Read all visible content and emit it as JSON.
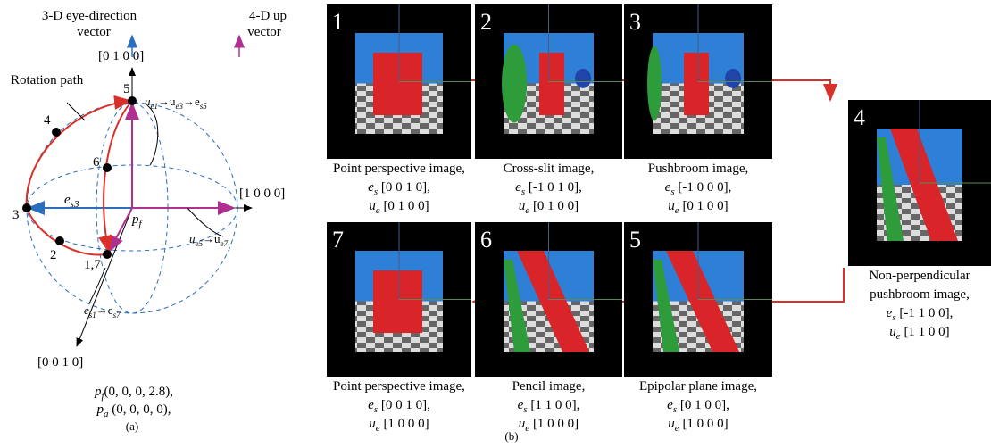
{
  "figure_a": {
    "legend": {
      "eye_direction": [
        "3-D eye-direction",
        "vector"
      ],
      "up": [
        "4-D up",
        "vector"
      ]
    },
    "axes": {
      "y": "[0 1 0 0]",
      "x": "[1 0 0 0]",
      "z": "[0 0 1 0]"
    },
    "rotation_path": "Rotation path",
    "points": [
      "5",
      "4",
      "6",
      "3",
      "2",
      "1,7"
    ],
    "labels": {
      "es3": [
        "e",
        "s3"
      ],
      "pf": [
        "p",
        "f"
      ],
      "top": [
        "u",
        "e1",
        "→u",
        "e3",
        "→e",
        "s5"
      ],
      "right": [
        "u",
        "e5",
        "→u",
        "e7"
      ],
      "bottom": [
        "e",
        "s1",
        "→e",
        "s7"
      ]
    },
    "params": [
      [
        "p",
        "f",
        "(0, 0, 0, 2.8),"
      ],
      [
        "p",
        "a",
        " (0, 0, 0, 0),"
      ]
    ],
    "caption": "(a)"
  },
  "figure_b": {
    "panels": [
      {
        "number": "1",
        "title": [
          "Point perspective image,"
        ],
        "es": [
          "e",
          "s",
          " [0 0 1 0],"
        ],
        "ue": [
          "u",
          "e",
          " [0 1 0 0]"
        ]
      },
      {
        "number": "2",
        "title": [
          "Cross-slit image,"
        ],
        "es": [
          "e",
          "s",
          " [-1 0 1 0],"
        ],
        "ue": [
          "u",
          "e",
          " [0 1 0 0]"
        ]
      },
      {
        "number": "3",
        "title": [
          "Pushbroom image,"
        ],
        "es": [
          "e",
          "s",
          " [-1 0 0 0],"
        ],
        "ue": [
          "u",
          "e",
          " [0 1 0 0]"
        ]
      },
      {
        "number": "4",
        "title": [
          "Non-perpendicular",
          "pushbroom image,"
        ],
        "es": [
          "e",
          "s",
          " [-1 1 0 0],"
        ],
        "ue": [
          "u",
          "e",
          " [1 1 0 0]"
        ]
      },
      {
        "number": "5",
        "title": [
          "Epipolar plane image,"
        ],
        "es": [
          "e",
          "s",
          " [0 1 0 0],"
        ],
        "ue": [
          "u",
          "e",
          " [1 0 0 0]"
        ]
      },
      {
        "number": "6",
        "title": [
          "Pencil image,"
        ],
        "es": [
          "e",
          "s",
          " [1 1 0 0],"
        ],
        "ue": [
          "u",
          "e",
          " [1 0 0 0]"
        ]
      },
      {
        "number": "7",
        "title": [
          "Point perspective image,"
        ],
        "es": [
          "e",
          "s",
          " [0 0 1 0],"
        ],
        "ue": [
          "u",
          "e",
          " [1 0 0 0]"
        ]
      }
    ],
    "caption": "(b)"
  }
}
